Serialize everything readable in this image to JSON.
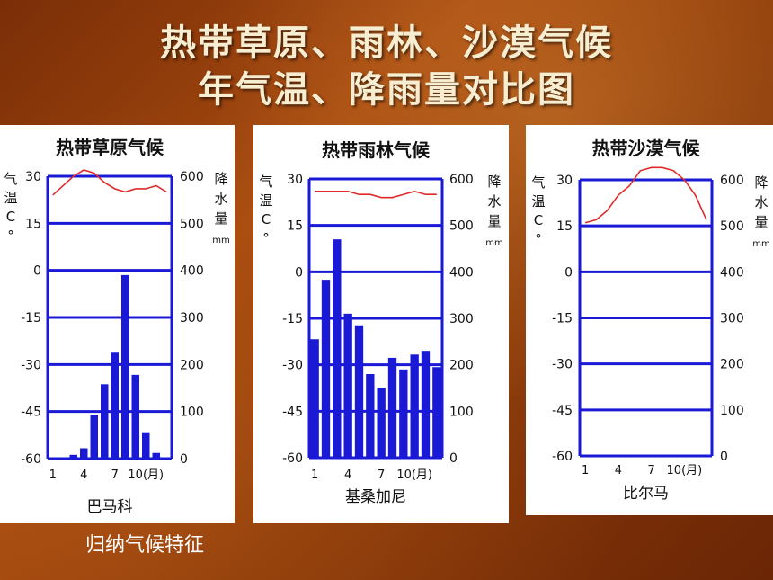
{
  "slide": {
    "title_line1": "热带草原、雨林、沙漠气候",
    "title_line2": "年气温、降雨量对比图",
    "footer": "归纳气候特征"
  },
  "colors": {
    "axis": "#1a1ad6",
    "bar": "#1a1ad6",
    "temp_line": "#e02a2a"
  },
  "chart_data": [
    {
      "type": "bar",
      "title": "热带草原气候",
      "station": "巴马科",
      "left_axis_label": "气温C°",
      "right_axis_label": "降水量",
      "right_axis_unit": "mm",
      "temp_ticks": [
        "30",
        "15",
        "0",
        "-15",
        "-30",
        "-45",
        "-60"
      ],
      "temp_ylim": [
        -60,
        30
      ],
      "precip_ticks": [
        "600",
        "500",
        "400",
        "300",
        "200",
        "100",
        "0"
      ],
      "precip_ylim": [
        0,
        600
      ],
      "x_ticks": [
        "1",
        "4",
        "7",
        "10(月)"
      ],
      "x_tick_months": [
        1,
        4,
        7,
        10
      ],
      "months": [
        1,
        2,
        3,
        4,
        5,
        6,
        7,
        8,
        9,
        10,
        11,
        12
      ],
      "temperature": [
        24,
        27,
        30,
        32,
        31,
        28,
        26,
        25,
        26,
        26,
        27,
        25
      ],
      "precipitation": [
        1,
        1,
        8,
        22,
        93,
        158,
        225,
        390,
        178,
        56,
        12,
        1
      ]
    },
    {
      "type": "bar",
      "title": "热带雨林气候",
      "station": "基桑加尼",
      "left_axis_label": "气温C°",
      "right_axis_label": "降水量",
      "right_axis_unit": "mm",
      "temp_ticks": [
        "30",
        "15",
        "0",
        "-15",
        "-30",
        "-45",
        "-60"
      ],
      "temp_ylim": [
        -60,
        30
      ],
      "precip_ticks": [
        "600",
        "500",
        "400",
        "300",
        "200",
        "100",
        "0"
      ],
      "precip_ylim": [
        0,
        600
      ],
      "x_ticks": [
        "1",
        "4",
        "7",
        "10(月)"
      ],
      "x_tick_months": [
        1,
        4,
        7,
        10
      ],
      "months": [
        1,
        2,
        3,
        4,
        5,
        6,
        7,
        8,
        9,
        10,
        11,
        12
      ],
      "temperature": [
        26,
        26,
        26,
        26,
        25,
        25,
        24,
        24,
        25,
        26,
        25,
        25
      ],
      "precipitation": [
        255,
        383,
        470,
        310,
        285,
        180,
        150,
        215,
        190,
        222,
        230,
        195
      ]
    },
    {
      "type": "line",
      "title": "热带沙漠气候",
      "station": "比尔马",
      "left_axis_label": "气温C°",
      "right_axis_label": "降水量",
      "right_axis_unit": "mm",
      "temp_ticks": [
        "30",
        "15",
        "0",
        "-15",
        "-30",
        "-45",
        "-60"
      ],
      "temp_ylim": [
        -60,
        30
      ],
      "precip_ticks": [
        "600",
        "500",
        "400",
        "300",
        "200",
        "100",
        "0"
      ],
      "precip_ylim": [
        0,
        600
      ],
      "x_ticks": [
        "1",
        "4",
        "7",
        "10(月)"
      ],
      "x_tick_months": [
        1,
        4,
        7,
        10
      ],
      "months": [
        1,
        2,
        3,
        4,
        5,
        6,
        7,
        8,
        9,
        10,
        11,
        12
      ],
      "temperature": [
        16,
        17,
        20,
        25,
        28,
        33,
        34,
        34,
        33,
        30,
        25,
        17
      ],
      "precipitation": [
        0,
        0,
        0,
        0,
        0,
        0,
        0,
        0,
        0,
        0,
        0,
        0
      ]
    }
  ]
}
